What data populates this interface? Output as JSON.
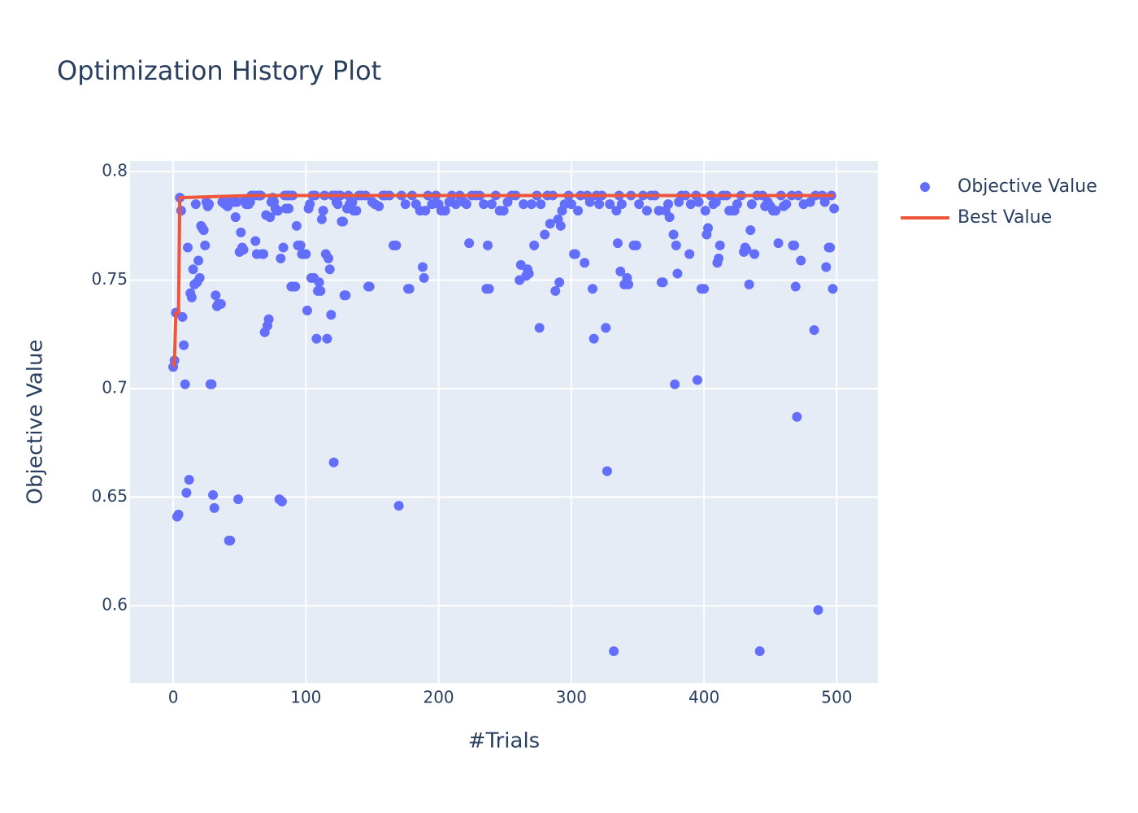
{
  "chart_data": {
    "type": "scatter",
    "title": "Optimization History Plot",
    "x_label": "#Trials",
    "y_label": "Objective Value",
    "xlim": [
      -32.5,
      531
    ],
    "ylim": [
      0.5644,
      0.8049
    ],
    "xticks": [
      0,
      100,
      200,
      300,
      400,
      500
    ],
    "yticks": [
      0.6,
      0.65,
      0.7,
      0.75,
      0.8
    ],
    "grid": true,
    "legend": "right",
    "series": [
      {
        "name": "Objective Value",
        "mode": "markers",
        "color": "#636efa",
        "x": [
          0,
          1,
          2,
          3,
          4,
          5,
          6,
          7,
          8,
          9,
          10,
          11,
          12,
          13,
          14,
          15,
          16,
          17,
          18,
          19,
          20,
          21,
          22,
          23,
          24,
          25,
          26,
          27,
          28,
          29,
          30,
          31,
          32,
          33,
          34,
          35,
          36,
          37,
          38,
          39,
          40,
          41,
          42,
          43,
          44,
          45,
          46,
          47,
          48,
          49,
          50,
          51,
          52,
          53,
          54,
          55,
          56,
          57,
          58,
          59,
          60,
          61,
          62,
          63,
          64,
          65,
          66,
          67,
          68,
          69,
          70,
          71,
          72,
          73,
          74,
          75,
          76,
          77,
          78,
          79,
          80,
          81,
          82,
          83,
          84,
          85,
          86,
          87,
          88,
          89,
          90,
          91,
          92,
          93,
          94,
          95,
          96,
          97,
          98,
          99,
          100,
          101,
          102,
          103,
          104,
          105,
          106,
          107,
          108,
          109,
          110,
          111,
          112,
          113,
          114,
          115,
          116,
          117,
          118,
          119,
          120,
          121,
          122,
          123,
          124,
          125,
          126,
          127,
          128,
          129,
          130,
          131,
          132,
          133,
          134,
          135,
          136,
          138,
          140,
          142,
          145,
          147,
          148,
          150,
          152,
          155,
          158,
          160,
          163,
          166,
          168,
          170,
          172,
          175,
          177,
          178,
          180,
          183,
          186,
          188,
          189,
          190,
          192,
          195,
          198,
          200,
          202,
          205,
          208,
          210,
          213,
          216,
          219,
          221,
          223,
          225,
          228,
          231,
          234,
          236,
          237,
          238,
          240,
          243,
          246,
          249,
          252,
          255,
          258,
          261,
          262,
          264,
          266,
          267,
          268,
          270,
          272,
          274,
          276,
          277,
          280,
          282,
          284,
          286,
          288,
          290,
          291,
          292,
          293,
          295,
          298,
          300,
          302,
          303,
          305,
          307,
          310,
          312,
          314,
          316,
          317,
          319,
          321,
          323,
          326,
          327,
          329,
          332,
          334,
          335,
          336,
          337,
          338,
          340,
          342,
          343,
          345,
          347,
          349,
          351,
          354,
          357,
          360,
          363,
          366,
          368,
          369,
          371,
          373,
          374,
          377,
          378,
          379,
          380,
          381,
          383,
          386,
          389,
          390,
          394,
          395,
          396,
          398,
          400,
          401,
          402,
          403,
          405,
          407,
          409,
          410,
          411,
          412,
          414,
          417,
          419,
          421,
          423,
          425,
          428,
          430,
          431,
          432,
          434,
          435,
          436,
          438,
          440,
          442,
          444,
          446,
          448,
          450,
          452,
          454,
          456,
          458,
          460,
          462,
          466,
          467,
          468,
          469,
          470,
          471,
          473,
          475,
          480,
          483,
          484,
          486,
          489,
          491,
          492,
          494,
          495,
          496,
          497,
          498
        ],
        "values": [
          0.71,
          0.713,
          0.735,
          0.641,
          0.642,
          0.788,
          0.782,
          0.733,
          0.72,
          0.702,
          0.652,
          0.765,
          0.658,
          0.744,
          0.742,
          0.755,
          0.748,
          0.785,
          0.749,
          0.759,
          0.751,
          0.775,
          0.774,
          0.773,
          0.766,
          0.786,
          0.784,
          0.785,
          0.702,
          0.702,
          0.651,
          0.645,
          0.743,
          0.738,
          0.739,
          0.739,
          0.739,
          0.786,
          0.786,
          0.785,
          0.786,
          0.784,
          0.63,
          0.63,
          0.786,
          0.787,
          0.786,
          0.779,
          0.786,
          0.649,
          0.763,
          0.772,
          0.765,
          0.764,
          0.787,
          0.785,
          0.785,
          0.785,
          0.786,
          0.789,
          0.789,
          0.789,
          0.768,
          0.762,
          0.789,
          0.789,
          0.789,
          0.762,
          0.762,
          0.726,
          0.78,
          0.729,
          0.732,
          0.779,
          0.786,
          0.788,
          0.786,
          0.783,
          0.782,
          0.782,
          0.649,
          0.76,
          0.648,
          0.765,
          0.789,
          0.783,
          0.789,
          0.783,
          0.789,
          0.747,
          0.789,
          0.747,
          0.747,
          0.775,
          0.766,
          0.766,
          0.766,
          0.762,
          0.762,
          0.762,
          0.762,
          0.736,
          0.783,
          0.785,
          0.751,
          0.789,
          0.751,
          0.789,
          0.723,
          0.745,
          0.749,
          0.745,
          0.778,
          0.782,
          0.789,
          0.762,
          0.723,
          0.76,
          0.755,
          0.734,
          0.789,
          0.666,
          0.789,
          0.786,
          0.785,
          0.789,
          0.789,
          0.777,
          0.777,
          0.743,
          0.743,
          0.783,
          0.789,
          0.785,
          0.786,
          0.786,
          0.782,
          0.782,
          0.789,
          0.789,
          0.789,
          0.747,
          0.747,
          0.786,
          0.785,
          0.784,
          0.789,
          0.789,
          0.789,
          0.766,
          0.766,
          0.646,
          0.789,
          0.785,
          0.746,
          0.746,
          0.789,
          0.785,
          0.782,
          0.756,
          0.751,
          0.782,
          0.789,
          0.785,
          0.789,
          0.785,
          0.782,
          0.782,
          0.786,
          0.789,
          0.785,
          0.789,
          0.786,
          0.785,
          0.767,
          0.789,
          0.789,
          0.789,
          0.785,
          0.746,
          0.766,
          0.746,
          0.785,
          0.789,
          0.782,
          0.782,
          0.786,
          0.789,
          0.789,
          0.75,
          0.757,
          0.785,
          0.752,
          0.755,
          0.753,
          0.785,
          0.766,
          0.789,
          0.728,
          0.785,
          0.771,
          0.789,
          0.776,
          0.789,
          0.745,
          0.778,
          0.749,
          0.775,
          0.782,
          0.785,
          0.789,
          0.785,
          0.762,
          0.762,
          0.782,
          0.789,
          0.758,
          0.789,
          0.786,
          0.746,
          0.723,
          0.789,
          0.785,
          0.789,
          0.728,
          0.662,
          0.785,
          0.579,
          0.782,
          0.767,
          0.789,
          0.754,
          0.785,
          0.748,
          0.751,
          0.748,
          0.789,
          0.766,
          0.766,
          0.785,
          0.789,
          0.782,
          0.789,
          0.789,
          0.782,
          0.749,
          0.749,
          0.782,
          0.785,
          0.779,
          0.771,
          0.702,
          0.766,
          0.753,
          0.786,
          0.789,
          0.789,
          0.762,
          0.785,
          0.789,
          0.704,
          0.786,
          0.746,
          0.746,
          0.782,
          0.771,
          0.774,
          0.789,
          0.785,
          0.786,
          0.758,
          0.76,
          0.766,
          0.789,
          0.789,
          0.782,
          0.782,
          0.782,
          0.785,
          0.789,
          0.763,
          0.765,
          0.764,
          0.748,
          0.773,
          0.785,
          0.762,
          0.789,
          0.579,
          0.789,
          0.784,
          0.786,
          0.784,
          0.782,
          0.782,
          0.767,
          0.789,
          0.784,
          0.785,
          0.789,
          0.766,
          0.766,
          0.747,
          0.687,
          0.789,
          0.759,
          0.785,
          0.786,
          0.727,
          0.789,
          0.598,
          0.789,
          0.786,
          0.756,
          0.765,
          0.765,
          0.789,
          0.746,
          0.783
        ]
      },
      {
        "name": "Best Value",
        "mode": "lines",
        "color": "#ef553b",
        "x": [
          0,
          1,
          2,
          3,
          4,
          5,
          59,
          498
        ],
        "values": [
          0.71,
          0.713,
          0.735,
          0.735,
          0.735,
          0.788,
          0.789,
          0.789
        ]
      }
    ]
  }
}
